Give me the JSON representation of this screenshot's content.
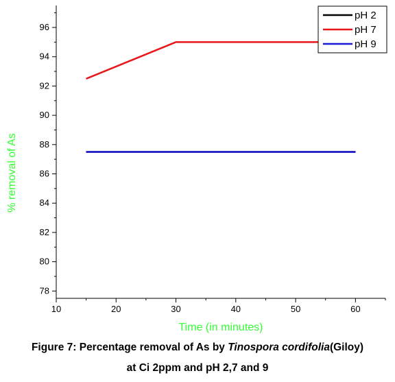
{
  "chart_data": {
    "type": "line",
    "xlabel": "Time (in minutes)",
    "ylabel": "% removal of As",
    "xlim": [
      10,
      65
    ],
    "ylim": [
      77.5,
      97.5
    ],
    "xticks": [
      10,
      20,
      30,
      40,
      50,
      60
    ],
    "yticks": [
      78,
      80,
      82,
      84,
      86,
      88,
      90,
      92,
      94,
      96
    ],
    "grid": false,
    "legend": "top-right",
    "axis_title_color": "#33ff33",
    "series": [
      {
        "name": "pH 2",
        "color": "#000000",
        "x": [
          15,
          30,
          60
        ],
        "y": [
          87.5,
          87.5,
          87.5
        ]
      },
      {
        "name": "pH 7",
        "color": "#e8161a",
        "x": [
          15,
          30,
          60
        ],
        "y": [
          92.5,
          95,
          95
        ]
      },
      {
        "name": "pH 9",
        "color": "#1a1ad6",
        "x": [
          15,
          30,
          60
        ],
        "y": [
          87.5,
          87.5,
          87.5
        ]
      }
    ]
  },
  "caption": {
    "line1_prefix": "Figure 7: Percentage removal of As by ",
    "line1_species": "Tinospora cordifolia",
    "line1_suffix": "(Giloy)",
    "line2": "at Ci 2ppm and pH 2,7 and 9"
  }
}
